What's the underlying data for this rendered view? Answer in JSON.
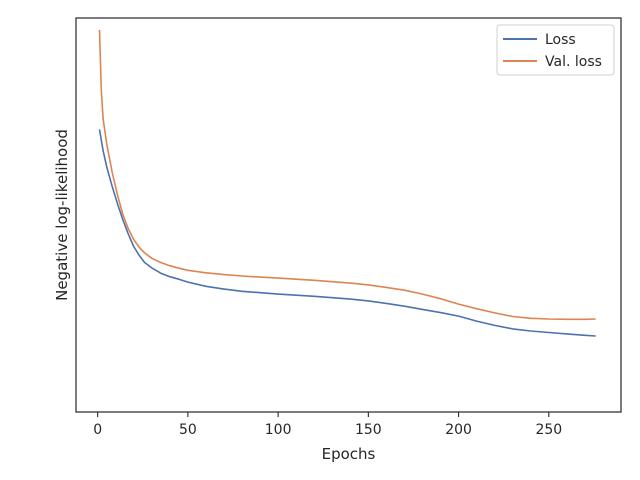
{
  "chart_data": {
    "type": "line",
    "title": "",
    "xlabel": "Epochs",
    "ylabel": "Negative log-likelihood",
    "xlim": [
      -12,
      290
    ],
    "ylim": [
      0,
      1
    ],
    "x_ticks": [
      0,
      50,
      100,
      150,
      200,
      250
    ],
    "y_ticks_shown": false,
    "grid": false,
    "legend_position": "top-right",
    "series": [
      {
        "name": "Loss",
        "color": "#4c72b0",
        "x": [
          1,
          3,
          5,
          8,
          11,
          14,
          17,
          20,
          23,
          26,
          30,
          35,
          40,
          45,
          50,
          60,
          70,
          80,
          90,
          100,
          110,
          120,
          130,
          140,
          150,
          160,
          170,
          180,
          190,
          200,
          210,
          220,
          230,
          240,
          250,
          260,
          270,
          276
        ],
        "y": [
          0.72,
          0.66,
          0.615,
          0.56,
          0.51,
          0.465,
          0.425,
          0.39,
          0.365,
          0.345,
          0.33,
          0.315,
          0.305,
          0.298,
          0.29,
          0.278,
          0.27,
          0.264,
          0.26,
          0.256,
          0.253,
          0.25,
          0.246,
          0.242,
          0.237,
          0.23,
          0.222,
          0.213,
          0.204,
          0.194,
          0.18,
          0.168,
          0.158,
          0.152,
          0.148,
          0.144,
          0.14,
          0.138
        ]
      },
      {
        "name": "Val. loss",
        "color": "#dd8452",
        "x": [
          1,
          2,
          3,
          5,
          8,
          11,
          14,
          17,
          20,
          23,
          26,
          30,
          35,
          40,
          45,
          50,
          60,
          70,
          80,
          90,
          100,
          110,
          120,
          130,
          140,
          150,
          160,
          170,
          180,
          190,
          200,
          210,
          220,
          230,
          240,
          250,
          260,
          270,
          276
        ],
        "y": [
          1.0,
          0.83,
          0.75,
          0.68,
          0.6,
          0.535,
          0.48,
          0.44,
          0.41,
          0.388,
          0.372,
          0.357,
          0.345,
          0.336,
          0.329,
          0.323,
          0.316,
          0.311,
          0.307,
          0.304,
          0.301,
          0.298,
          0.295,
          0.291,
          0.287,
          0.282,
          0.275,
          0.267,
          0.256,
          0.243,
          0.228,
          0.215,
          0.203,
          0.193,
          0.188,
          0.186,
          0.185,
          0.185,
          0.186
        ]
      }
    ]
  }
}
